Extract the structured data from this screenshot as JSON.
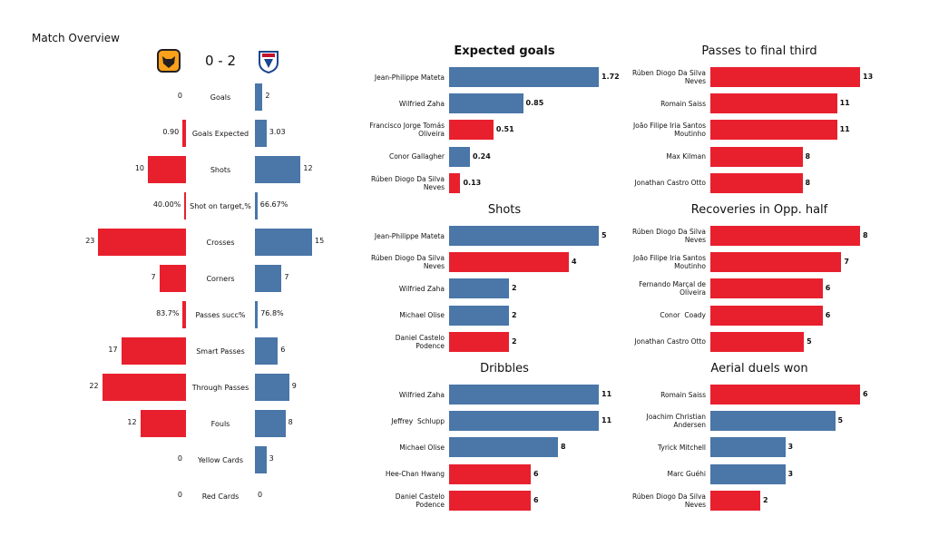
{
  "chart_data": [
    {
      "type": "butterfly",
      "title": "Match Overview",
      "score": "0 - 2",
      "categories": [
        "Goals",
        "Goals Expected",
        "Shots",
        "Shot on target,%",
        "Crosses",
        "Corners",
        "Passes succ%",
        "Smart Passes",
        "Through Passes",
        "Fouls",
        "Yellow Cards",
        "Red Cards"
      ],
      "series": [
        {
          "color": "#e8202e",
          "values": [
            0,
            0.9,
            10,
            0.4,
            23,
            7,
            0.837,
            17,
            22,
            12,
            0,
            0
          ],
          "value_labels": [
            "0",
            "0.90",
            "10",
            "40.00%",
            "23",
            "7",
            "83.7%",
            "17",
            "22",
            "12",
            "0",
            "0"
          ]
        },
        {
          "color": "#4a76a8",
          "values": [
            2,
            3.03,
            12,
            0.6667,
            15,
            7,
            0.768,
            6,
            9,
            8,
            3,
            0
          ],
          "value_labels": [
            "2",
            "3.03",
            "12",
            "66.67%",
            "15",
            "7",
            "76.8%",
            "6",
            "9",
            "8",
            "3",
            "0"
          ]
        }
      ]
    },
    {
      "type": "hbar",
      "title": "Expected goals",
      "categories": [
        "Jean-Philippe Mateta",
        "Wilfried Zaha",
        "Francisco Jorge Tomás Oliveira",
        "Conor Gallagher",
        "Rúben Diogo Da Silva Neves"
      ],
      "values": [
        1.72,
        0.85,
        0.51,
        0.24,
        0.13
      ],
      "colors": [
        "#4a76a8",
        "#4a76a8",
        "#e8202e",
        "#4a76a8",
        "#e8202e"
      ]
    },
    {
      "type": "hbar",
      "title": "Passes to final third",
      "categories": [
        "Rúben Diogo Da Silva Neves",
        "Romain Saiss",
        "João Filipe Iria Santos Moutinho",
        "Max Kilman",
        "Jonathan Castro Otto"
      ],
      "values": [
        13,
        11,
        11,
        8,
        8
      ],
      "colors": [
        "#e8202e",
        "#e8202e",
        "#e8202e",
        "#e8202e",
        "#e8202e"
      ]
    },
    {
      "type": "hbar",
      "title": "Shots",
      "categories": [
        "Jean-Philippe Mateta",
        "Rúben Diogo Da Silva Neves",
        "Wilfried Zaha",
        "Michael Olise",
        "Daniel Castelo Podence"
      ],
      "values": [
        5,
        4,
        2,
        2,
        2
      ],
      "colors": [
        "#4a76a8",
        "#e8202e",
        "#4a76a8",
        "#4a76a8",
        "#e8202e"
      ]
    },
    {
      "type": "hbar",
      "title": "Recoveries in Opp. half",
      "categories": [
        "Rúben Diogo Da Silva Neves",
        "João Filipe Iria Santos Moutinho",
        "Fernando Marçal de Oliveira",
        "Conor  Coady",
        "Jonathan Castro Otto"
      ],
      "values": [
        8,
        7,
        6,
        6,
        5
      ],
      "colors": [
        "#e8202e",
        "#e8202e",
        "#e8202e",
        "#e8202e",
        "#e8202e"
      ]
    },
    {
      "type": "hbar",
      "title": "Dribbles",
      "categories": [
        "Wilfried Zaha",
        "Jeffrey  Schlupp",
        "Michael Olise",
        "Hee-Chan Hwang",
        "Daniel Castelo Podence"
      ],
      "values": [
        11,
        11,
        8,
        6,
        6
      ],
      "colors": [
        "#4a76a8",
        "#4a76a8",
        "#4a76a8",
        "#e8202e",
        "#e8202e"
      ]
    },
    {
      "type": "hbar",
      "title": "Aerial duels won",
      "categories": [
        "Romain Saiss",
        "Joachim Christian Andersen",
        "Tyrick Mitchell",
        "Marc Guéhi",
        "Rúben Diogo Da Silva Neves"
      ],
      "values": [
        6,
        5,
        3,
        3,
        2
      ],
      "colors": [
        "#e8202e",
        "#4a76a8",
        "#4a76a8",
        "#4a76a8",
        "#e8202e"
      ]
    }
  ]
}
